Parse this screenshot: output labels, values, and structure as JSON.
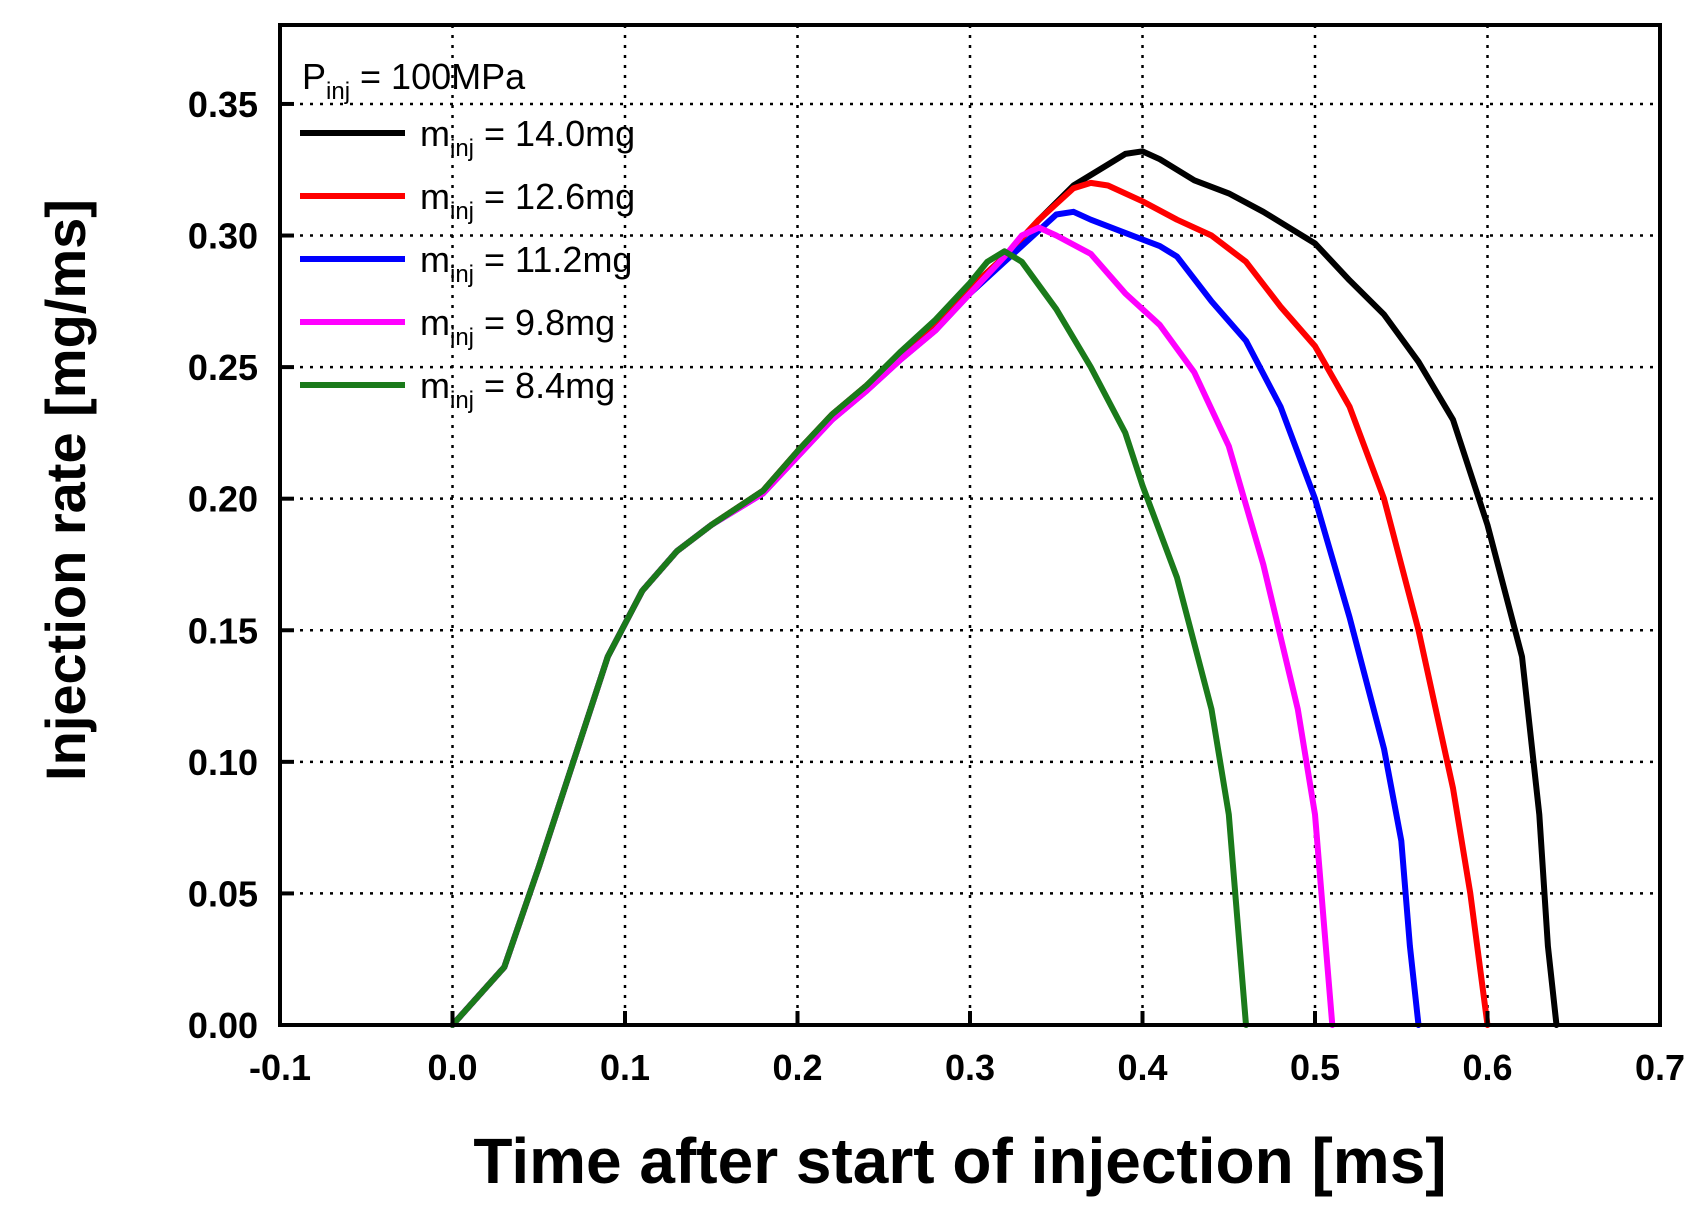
{
  "chart_data": {
    "type": "line",
    "xlabel": "Time after start of injection [ms]",
    "ylabel": "Injection rate [mg/ms]",
    "xlim": [
      -0.1,
      0.7
    ],
    "ylim": [
      0.0,
      0.38
    ],
    "x_ticks": [
      "-0.1",
      "0.0",
      "0.1",
      "0.2",
      "0.3",
      "0.4",
      "0.5",
      "0.6",
      "0.7"
    ],
    "y_ticks": [
      "0.00",
      "0.05",
      "0.10",
      "0.15",
      "0.20",
      "0.25",
      "0.30",
      "0.35"
    ],
    "grid": true,
    "legend_position": "top-left",
    "legend_header": {
      "symbol": "P",
      "sub": "inj",
      "rest": " = 100MPa"
    },
    "series": [
      {
        "name_symbol": "m",
        "name_sub": "inj",
        "name_rest": " = 14.0mg",
        "color": "#000000",
        "points": [
          [
            0.0,
            0.0
          ],
          [
            0.03,
            0.022
          ],
          [
            0.05,
            0.06
          ],
          [
            0.07,
            0.1
          ],
          [
            0.09,
            0.14
          ],
          [
            0.11,
            0.165
          ],
          [
            0.13,
            0.18
          ],
          [
            0.15,
            0.19
          ],
          [
            0.18,
            0.203
          ],
          [
            0.2,
            0.218
          ],
          [
            0.22,
            0.232
          ],
          [
            0.24,
            0.243
          ],
          [
            0.26,
            0.255
          ],
          [
            0.28,
            0.266
          ],
          [
            0.3,
            0.28
          ],
          [
            0.32,
            0.292
          ],
          [
            0.34,
            0.306
          ],
          [
            0.36,
            0.319
          ],
          [
            0.38,
            0.327
          ],
          [
            0.39,
            0.331
          ],
          [
            0.4,
            0.332
          ],
          [
            0.41,
            0.329
          ],
          [
            0.43,
            0.321
          ],
          [
            0.45,
            0.316
          ],
          [
            0.47,
            0.309
          ],
          [
            0.49,
            0.301
          ],
          [
            0.5,
            0.297
          ],
          [
            0.52,
            0.283
          ],
          [
            0.54,
            0.27
          ],
          [
            0.56,
            0.252
          ],
          [
            0.58,
            0.23
          ],
          [
            0.6,
            0.19
          ],
          [
            0.62,
            0.14
          ],
          [
            0.63,
            0.08
          ],
          [
            0.635,
            0.03
          ],
          [
            0.64,
            0.0
          ]
        ]
      },
      {
        "name_symbol": "m",
        "name_sub": "inj",
        "name_rest": " = 12.6mg",
        "color": "#ff0000",
        "points": [
          [
            0.0,
            0.0
          ],
          [
            0.03,
            0.022
          ],
          [
            0.05,
            0.06
          ],
          [
            0.07,
            0.1
          ],
          [
            0.09,
            0.14
          ],
          [
            0.11,
            0.165
          ],
          [
            0.13,
            0.18
          ],
          [
            0.15,
            0.19
          ],
          [
            0.18,
            0.203
          ],
          [
            0.2,
            0.218
          ],
          [
            0.22,
            0.232
          ],
          [
            0.24,
            0.243
          ],
          [
            0.26,
            0.255
          ],
          [
            0.28,
            0.266
          ],
          [
            0.3,
            0.28
          ],
          [
            0.32,
            0.292
          ],
          [
            0.34,
            0.306
          ],
          [
            0.36,
            0.318
          ],
          [
            0.37,
            0.32
          ],
          [
            0.38,
            0.319
          ],
          [
            0.4,
            0.313
          ],
          [
            0.42,
            0.306
          ],
          [
            0.44,
            0.3
          ],
          [
            0.46,
            0.29
          ],
          [
            0.48,
            0.273
          ],
          [
            0.5,
            0.258
          ],
          [
            0.52,
            0.235
          ],
          [
            0.54,
            0.2
          ],
          [
            0.56,
            0.15
          ],
          [
            0.58,
            0.09
          ],
          [
            0.59,
            0.05
          ],
          [
            0.6,
            0.0
          ]
        ]
      },
      {
        "name_symbol": "m",
        "name_sub": "inj",
        "name_rest": " = 11.2mg",
        "color": "#0000ff",
        "points": [
          [
            0.0,
            0.0
          ],
          [
            0.03,
            0.022
          ],
          [
            0.05,
            0.06
          ],
          [
            0.07,
            0.1
          ],
          [
            0.09,
            0.14
          ],
          [
            0.11,
            0.165
          ],
          [
            0.13,
            0.18
          ],
          [
            0.15,
            0.19
          ],
          [
            0.18,
            0.202
          ],
          [
            0.2,
            0.216
          ],
          [
            0.22,
            0.23
          ],
          [
            0.24,
            0.241
          ],
          [
            0.26,
            0.253
          ],
          [
            0.28,
            0.264
          ],
          [
            0.3,
            0.278
          ],
          [
            0.32,
            0.29
          ],
          [
            0.34,
            0.302
          ],
          [
            0.35,
            0.308
          ],
          [
            0.36,
            0.309
          ],
          [
            0.37,
            0.306
          ],
          [
            0.39,
            0.301
          ],
          [
            0.41,
            0.296
          ],
          [
            0.42,
            0.292
          ],
          [
            0.44,
            0.275
          ],
          [
            0.46,
            0.26
          ],
          [
            0.48,
            0.235
          ],
          [
            0.5,
            0.2
          ],
          [
            0.52,
            0.155
          ],
          [
            0.54,
            0.105
          ],
          [
            0.55,
            0.07
          ],
          [
            0.555,
            0.03
          ],
          [
            0.56,
            0.0
          ]
        ]
      },
      {
        "name_symbol": "m",
        "name_sub": "inj",
        "name_rest": " = 9.8mg",
        "color": "#ff00ff",
        "points": [
          [
            0.0,
            0.0
          ],
          [
            0.03,
            0.022
          ],
          [
            0.05,
            0.06
          ],
          [
            0.07,
            0.1
          ],
          [
            0.09,
            0.14
          ],
          [
            0.11,
            0.165
          ],
          [
            0.13,
            0.18
          ],
          [
            0.15,
            0.19
          ],
          [
            0.18,
            0.202
          ],
          [
            0.2,
            0.216
          ],
          [
            0.22,
            0.23
          ],
          [
            0.24,
            0.241
          ],
          [
            0.26,
            0.253
          ],
          [
            0.28,
            0.264
          ],
          [
            0.3,
            0.278
          ],
          [
            0.32,
            0.292
          ],
          [
            0.33,
            0.3
          ],
          [
            0.34,
            0.303
          ],
          [
            0.35,
            0.3
          ],
          [
            0.37,
            0.293
          ],
          [
            0.39,
            0.278
          ],
          [
            0.41,
            0.266
          ],
          [
            0.43,
            0.248
          ],
          [
            0.45,
            0.22
          ],
          [
            0.47,
            0.175
          ],
          [
            0.49,
            0.12
          ],
          [
            0.5,
            0.08
          ],
          [
            0.505,
            0.04
          ],
          [
            0.51,
            0.0
          ]
        ]
      },
      {
        "name_symbol": "m",
        "name_sub": "inj",
        "name_rest": " = 8.4mg",
        "color": "#1a7a1a",
        "points": [
          [
            0.0,
            0.0
          ],
          [
            0.03,
            0.022
          ],
          [
            0.05,
            0.06
          ],
          [
            0.07,
            0.1
          ],
          [
            0.09,
            0.14
          ],
          [
            0.11,
            0.165
          ],
          [
            0.13,
            0.18
          ],
          [
            0.15,
            0.19
          ],
          [
            0.18,
            0.203
          ],
          [
            0.2,
            0.218
          ],
          [
            0.22,
            0.232
          ],
          [
            0.24,
            0.243
          ],
          [
            0.26,
            0.256
          ],
          [
            0.28,
            0.268
          ],
          [
            0.3,
            0.282
          ],
          [
            0.31,
            0.29
          ],
          [
            0.32,
            0.294
          ],
          [
            0.33,
            0.29
          ],
          [
            0.35,
            0.272
          ],
          [
            0.37,
            0.25
          ],
          [
            0.39,
            0.225
          ],
          [
            0.4,
            0.205
          ],
          [
            0.42,
            0.17
          ],
          [
            0.44,
            0.12
          ],
          [
            0.45,
            0.08
          ],
          [
            0.455,
            0.04
          ],
          [
            0.46,
            0.0
          ]
        ]
      }
    ]
  }
}
